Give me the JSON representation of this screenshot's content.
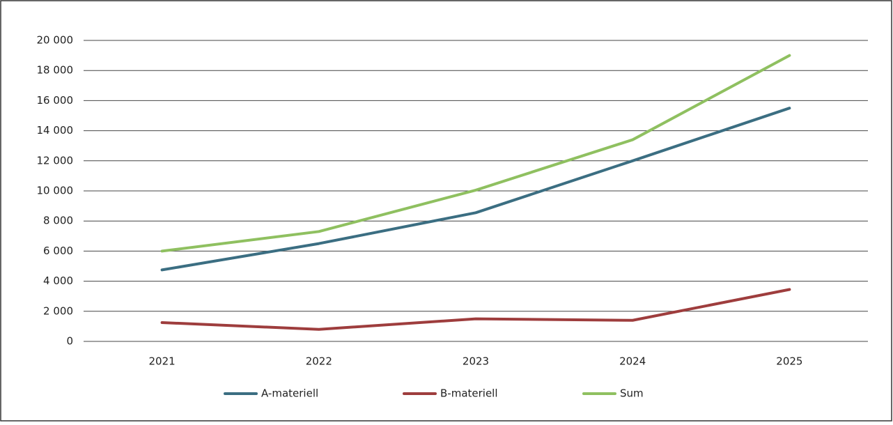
{
  "chart_data": {
    "type": "line",
    "categories": [
      "2021",
      "2022",
      "2023",
      "2024",
      "2025"
    ],
    "series": [
      {
        "name": "A-materiell",
        "color": "#3b6e82",
        "values": [
          4750,
          6500,
          8550,
          12000,
          15500
        ]
      },
      {
        "name": "B-materiell",
        "color": "#9e3d3d",
        "values": [
          1250,
          800,
          1500,
          1400,
          3450
        ]
      },
      {
        "name": "Sum",
        "color": "#8fc060",
        "values": [
          6000,
          7300,
          10050,
          13400,
          19000
        ]
      }
    ],
    "ylim": [
      0,
      20000
    ],
    "yticks": [
      0,
      {
        "value": 2000,
        "label": "2 000"
      },
      {
        "value": 4000,
        "label": "4 000"
      },
      {
        "value": 6000,
        "label": "6 000"
      },
      {
        "value": 8000,
        "label": "8 000"
      },
      {
        "value": 10000,
        "label": "10 000"
      },
      {
        "value": 12000,
        "label": "12 000"
      },
      {
        "value": 14000,
        "label": "14 000"
      },
      {
        "value": 16000,
        "label": "16 000"
      },
      {
        "value": 18000,
        "label": "18 000"
      },
      {
        "value": 20000,
        "label": "20 000"
      }
    ],
    "grid": true,
    "legend": "bottom"
  }
}
